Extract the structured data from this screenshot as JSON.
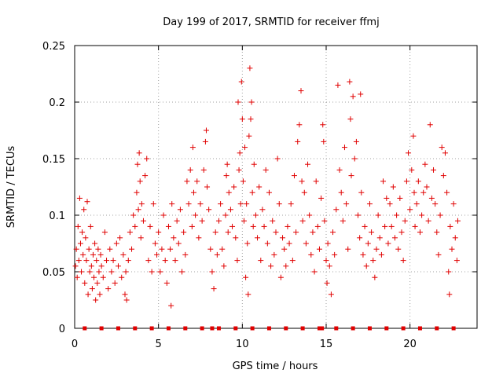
{
  "chart_data": {
    "type": "scatter",
    "title": "Day 199 of 2017, SRMTID for receiver ffmj",
    "xlabel": "GPS time / hours",
    "ylabel": "SRMTID / TECUs",
    "xlim": [
      0,
      24
    ],
    "ylim": [
      0,
      0.25
    ],
    "x_ticks": [
      0,
      5,
      10,
      15,
      20
    ],
    "x_tick_labels": [
      "0",
      "5",
      "10",
      "15",
      "20"
    ],
    "y_ticks": [
      0,
      0.05,
      0.1,
      0.15,
      0.2,
      0.25
    ],
    "y_tick_labels": [
      "0",
      "0.05",
      "0.1",
      "0.15",
      "0.2",
      "0.25"
    ],
    "grid": true,
    "marker": "+",
    "color": "#e00000",
    "series": [
      {
        "name": "SRMTID",
        "points": [
          [
            0.05,
            0.055
          ],
          [
            0.1,
            0.07
          ],
          [
            0.15,
            0.045
          ],
          [
            0.2,
            0.09
          ],
          [
            0.25,
            0.06
          ],
          [
            0.3,
            0.115
          ],
          [
            0.35,
            0.075
          ],
          [
            0.4,
            0.05
          ],
          [
            0.45,
            0.085
          ],
          [
            0.5,
            0.065
          ],
          [
            0.55,
            0.105
          ],
          [
            0.6,
            0.04
          ],
          [
            0.65,
            0.08
          ],
          [
            0.7,
            0.06
          ],
          [
            0.75,
            0.112
          ],
          [
            0.8,
            0.03
          ],
          [
            0.85,
            0.07
          ],
          [
            0.9,
            0.05
          ],
          [
            0.95,
            0.09
          ],
          [
            1.0,
            0.055
          ],
          [
            1.05,
            0.035
          ],
          [
            1.1,
            0.065
          ],
          [
            1.15,
            0.045
          ],
          [
            1.2,
            0.075
          ],
          [
            1.25,
            0.025
          ],
          [
            1.3,
            0.06
          ],
          [
            1.35,
            0.04
          ],
          [
            1.4,
            0.07
          ],
          [
            1.45,
            0.05
          ],
          [
            1.5,
            0.03
          ],
          [
            1.55,
            0.065
          ],
          [
            1.6,
            0.055
          ],
          [
            1.7,
            0.045
          ],
          [
            1.8,
            0.085
          ],
          [
            1.9,
            0.06
          ],
          [
            2.0,
            0.035
          ],
          [
            2.1,
            0.07
          ],
          [
            2.2,
            0.05
          ],
          [
            2.3,
            0.06
          ],
          [
            2.4,
            0.04
          ],
          [
            2.5,
            0.075
          ],
          [
            2.6,
            0.055
          ],
          [
            2.7,
            0.08
          ],
          [
            2.8,
            0.045
          ],
          [
            2.9,
            0.065
          ],
          [
            3.0,
            0.03
          ],
          [
            3.05,
            0.05
          ],
          [
            3.1,
            0.025
          ],
          [
            3.2,
            0.06
          ],
          [
            3.3,
            0.085
          ],
          [
            3.4,
            0.07
          ],
          [
            3.5,
            0.1
          ],
          [
            3.6,
            0.09
          ],
          [
            3.7,
            0.12
          ],
          [
            3.75,
            0.145
          ],
          [
            3.8,
            0.105
          ],
          [
            3.85,
            0.155
          ],
          [
            3.9,
            0.13
          ],
          [
            3.95,
            0.08
          ],
          [
            4.0,
            0.11
          ],
          [
            4.1,
            0.095
          ],
          [
            4.2,
            0.135
          ],
          [
            4.3,
            0.15
          ],
          [
            4.4,
            0.06
          ],
          [
            4.5,
            0.09
          ],
          [
            4.6,
            0.05
          ],
          [
            4.7,
            0.11
          ],
          [
            4.8,
            0.075
          ],
          [
            4.9,
            0.065
          ],
          [
            5.0,
            0.085
          ],
          [
            5.1,
            0.05
          ],
          [
            5.2,
            0.07
          ],
          [
            5.3,
            0.1
          ],
          [
            5.4,
            0.06
          ],
          [
            5.5,
            0.04
          ],
          [
            5.6,
            0.09
          ],
          [
            5.7,
            0.07
          ],
          [
            5.75,
            0.02
          ],
          [
            5.8,
            0.11
          ],
          [
            5.9,
            0.08
          ],
          [
            6.0,
            0.06
          ],
          [
            6.1,
            0.095
          ],
          [
            6.2,
            0.075
          ],
          [
            6.3,
            0.105
          ],
          [
            6.4,
            0.05
          ],
          [
            6.5,
            0.085
          ],
          [
            6.6,
            0.065
          ],
          [
            6.7,
            0.13
          ],
          [
            6.8,
            0.11
          ],
          [
            6.9,
            0.14
          ],
          [
            7.0,
            0.09
          ],
          [
            7.05,
            0.16
          ],
          [
            7.1,
            0.12
          ],
          [
            7.2,
            0.1
          ],
          [
            7.3,
            0.13
          ],
          [
            7.4,
            0.08
          ],
          [
            7.5,
            0.11
          ],
          [
            7.6,
            0.095
          ],
          [
            7.7,
            0.14
          ],
          [
            7.8,
            0.165
          ],
          [
            7.85,
            0.175
          ],
          [
            7.9,
            0.125
          ],
          [
            8.0,
            0.105
          ],
          [
            8.1,
            0.07
          ],
          [
            8.2,
            0.05
          ],
          [
            8.3,
            0.035
          ],
          [
            8.4,
            0.085
          ],
          [
            8.5,
            0.065
          ],
          [
            8.6,
            0.095
          ],
          [
            8.7,
            0.11
          ],
          [
            8.8,
            0.07
          ],
          [
            8.9,
            0.055
          ],
          [
            9.0,
            0.1
          ],
          [
            9.05,
            0.135
          ],
          [
            9.1,
            0.145
          ],
          [
            9.15,
            0.085
          ],
          [
            9.2,
            0.12
          ],
          [
            9.3,
            0.105
          ],
          [
            9.4,
            0.09
          ],
          [
            9.5,
            0.125
          ],
          [
            9.6,
            0.08
          ],
          [
            9.7,
            0.06
          ],
          [
            9.75,
            0.2
          ],
          [
            9.8,
            0.14
          ],
          [
            9.85,
            0.155
          ],
          [
            9.9,
            0.11
          ],
          [
            9.95,
            0.218
          ],
          [
            10.0,
            0.185
          ],
          [
            10.05,
            0.13
          ],
          [
            10.1,
            0.095
          ],
          [
            10.15,
            0.16
          ],
          [
            10.2,
            0.045
          ],
          [
            10.25,
            0.11
          ],
          [
            10.3,
            0.075
          ],
          [
            10.35,
            0.03
          ],
          [
            10.4,
            0.17
          ],
          [
            10.45,
            0.23
          ],
          [
            10.5,
            0.185
          ],
          [
            10.55,
            0.2
          ],
          [
            10.6,
            0.12
          ],
          [
            10.65,
            0.09
          ],
          [
            10.7,
            0.145
          ],
          [
            10.8,
            0.1
          ],
          [
            10.9,
            0.08
          ],
          [
            11.0,
            0.125
          ],
          [
            11.1,
            0.06
          ],
          [
            11.2,
            0.105
          ],
          [
            11.3,
            0.09
          ],
          [
            11.4,
            0.14
          ],
          [
            11.5,
            0.075
          ],
          [
            11.6,
            0.12
          ],
          [
            11.7,
            0.055
          ],
          [
            11.8,
            0.095
          ],
          [
            11.9,
            0.065
          ],
          [
            12.0,
            0.085
          ],
          [
            12.1,
            0.15
          ],
          [
            12.2,
            0.11
          ],
          [
            12.3,
            0.045
          ],
          [
            12.4,
            0.08
          ],
          [
            12.5,
            0.07
          ],
          [
            12.6,
            0.055
          ],
          [
            12.7,
            0.09
          ],
          [
            12.8,
            0.075
          ],
          [
            12.9,
            0.11
          ],
          [
            13.0,
            0.06
          ],
          [
            13.1,
            0.135
          ],
          [
            13.2,
            0.085
          ],
          [
            13.3,
            0.165
          ],
          [
            13.4,
            0.18
          ],
          [
            13.5,
            0.21
          ],
          [
            13.55,
            0.13
          ],
          [
            13.6,
            0.095
          ],
          [
            13.7,
            0.12
          ],
          [
            13.8,
            0.075
          ],
          [
            13.9,
            0.145
          ],
          [
            14.0,
            0.1
          ],
          [
            14.1,
            0.065
          ],
          [
            14.2,
            0.085
          ],
          [
            14.3,
            0.05
          ],
          [
            14.4,
            0.13
          ],
          [
            14.5,
            0.09
          ],
          [
            14.6,
            0.07
          ],
          [
            14.7,
            0.115
          ],
          [
            14.8,
            0.18
          ],
          [
            14.85,
            0.165
          ],
          [
            14.9,
            0.095
          ],
          [
            15.0,
            0.06
          ],
          [
            15.05,
            0.04
          ],
          [
            15.1,
            0.075
          ],
          [
            15.2,
            0.055
          ],
          [
            15.3,
            0.03
          ],
          [
            15.4,
            0.085
          ],
          [
            15.5,
            0.065
          ],
          [
            15.6,
            0.105
          ],
          [
            15.7,
            0.215
          ],
          [
            15.8,
            0.14
          ],
          [
            15.9,
            0.12
          ],
          [
            16.0,
            0.095
          ],
          [
            16.1,
            0.16
          ],
          [
            16.2,
            0.11
          ],
          [
            16.3,
            0.07
          ],
          [
            16.4,
            0.218
          ],
          [
            16.45,
            0.185
          ],
          [
            16.5,
            0.135
          ],
          [
            16.6,
            0.205
          ],
          [
            16.7,
            0.15
          ],
          [
            16.8,
            0.165
          ],
          [
            16.9,
            0.1
          ],
          [
            17.0,
            0.08
          ],
          [
            17.05,
            0.207
          ],
          [
            17.1,
            0.12
          ],
          [
            17.2,
            0.065
          ],
          [
            17.3,
            0.09
          ],
          [
            17.4,
            0.055
          ],
          [
            17.5,
            0.075
          ],
          [
            17.6,
            0.11
          ],
          [
            17.7,
            0.085
          ],
          [
            17.8,
            0.06
          ],
          [
            17.9,
            0.045
          ],
          [
            18.0,
            0.07
          ],
          [
            18.1,
            0.1
          ],
          [
            18.2,
            0.08
          ],
          [
            18.3,
            0.065
          ],
          [
            18.4,
            0.13
          ],
          [
            18.5,
            0.09
          ],
          [
            18.6,
            0.115
          ],
          [
            18.7,
            0.075
          ],
          [
            18.8,
            0.11
          ],
          [
            18.9,
            0.09
          ],
          [
            19.0,
            0.125
          ],
          [
            19.1,
            0.08
          ],
          [
            19.2,
            0.1
          ],
          [
            19.3,
            0.07
          ],
          [
            19.4,
            0.115
          ],
          [
            19.5,
            0.085
          ],
          [
            19.6,
            0.06
          ],
          [
            19.7,
            0.095
          ],
          [
            19.8,
            0.13
          ],
          [
            19.9,
            0.155
          ],
          [
            20.0,
            0.105
          ],
          [
            20.1,
            0.14
          ],
          [
            20.2,
            0.17
          ],
          [
            20.25,
            0.12
          ],
          [
            20.3,
            0.09
          ],
          [
            20.4,
            0.11
          ],
          [
            20.5,
            0.13
          ],
          [
            20.6,
            0.085
          ],
          [
            20.7,
            0.1
          ],
          [
            20.8,
            0.12
          ],
          [
            20.9,
            0.145
          ],
          [
            21.0,
            0.125
          ],
          [
            21.1,
            0.095
          ],
          [
            21.2,
            0.18
          ],
          [
            21.3,
            0.115
          ],
          [
            21.4,
            0.14
          ],
          [
            21.5,
            0.11
          ],
          [
            21.6,
            0.085
          ],
          [
            21.7,
            0.065
          ],
          [
            21.8,
            0.1
          ],
          [
            21.9,
            0.16
          ],
          [
            22.0,
            0.135
          ],
          [
            22.1,
            0.155
          ],
          [
            22.2,
            0.12
          ],
          [
            22.3,
            0.05
          ],
          [
            22.35,
            0.03
          ],
          [
            22.4,
            0.09
          ],
          [
            22.5,
            0.07
          ],
          [
            22.6,
            0.11
          ],
          [
            22.7,
            0.08
          ],
          [
            22.8,
            0.06
          ],
          [
            22.85,
            0.095
          ]
        ]
      }
    ],
    "gap_markers_x": [
      0.6,
      1.6,
      2.6,
      3.6,
      4.6,
      5.6,
      6.6,
      7.6,
      8.2,
      8.6,
      9.6,
      10.6,
      11.6,
      12.6,
      13.6,
      14.6,
      14.75,
      15.6,
      16.6,
      17.6,
      18.6,
      19.6,
      20.6,
      21.6,
      22.6
    ]
  }
}
